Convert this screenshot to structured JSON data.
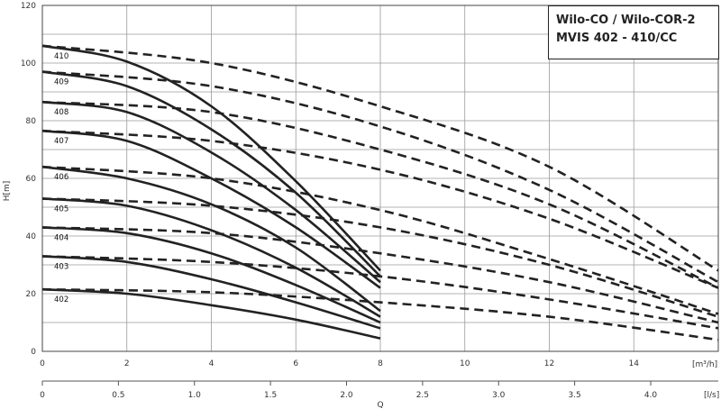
{
  "chart_data": {
    "type": "line",
    "title": [
      "Wilo-CO / Wilo-COR-2",
      "MVIS 402 - 410/CC"
    ],
    "ylabel": "H[m]",
    "xlabel": "Q",
    "x_unit_primary": "[m³/h]",
    "x_unit_secondary": "[l/s]",
    "xlim": [
      0,
      16
    ],
    "ylim": [
      0,
      120
    ],
    "x_ticks": [
      "0",
      "2",
      "4",
      "6",
      "8",
      "10",
      "12",
      "14"
    ],
    "y_ticks": [
      "0",
      "20",
      "40",
      "60",
      "80",
      "100",
      "120"
    ],
    "x_secondary_ticks": [
      "0",
      "0.5",
      "1.0",
      "1.5",
      "2.0",
      "2.5",
      "3.0",
      "3.5",
      "4.0"
    ],
    "grid": true,
    "series": [
      {
        "name": "402",
        "single": {
          "x": [
            0,
            2,
            4,
            6,
            8
          ],
          "y": [
            21.5,
            20,
            16,
            11,
            4.5
          ]
        },
        "parallel": {
          "x": [
            0,
            4,
            8,
            12,
            16
          ],
          "y": [
            21.5,
            20.5,
            17,
            12,
            4
          ]
        }
      },
      {
        "name": "403",
        "single": {
          "x": [
            0,
            2,
            4,
            6,
            8
          ],
          "y": [
            33,
            31,
            25,
            17,
            8
          ]
        },
        "parallel": {
          "x": [
            0,
            4,
            8,
            12,
            16
          ],
          "y": [
            33,
            31,
            26,
            18,
            8
          ]
        }
      },
      {
        "name": "404",
        "single": {
          "x": [
            0,
            2,
            4,
            6,
            8
          ],
          "y": [
            43,
            41,
            34,
            23,
            10
          ]
        },
        "parallel": {
          "x": [
            0,
            4,
            8,
            12,
            16
          ],
          "y": [
            43,
            41,
            34,
            24,
            10
          ]
        }
      },
      {
        "name": "405",
        "single": {
          "x": [
            0,
            2,
            4,
            6,
            8
          ],
          "y": [
            53,
            50.5,
            42,
            29,
            12
          ]
        },
        "parallel": {
          "x": [
            0,
            4,
            8,
            12,
            16
          ],
          "y": [
            53,
            50.5,
            43,
            30,
            12
          ]
        }
      },
      {
        "name": "406",
        "single": {
          "x": [
            0,
            2,
            4,
            6,
            8
          ],
          "y": [
            64,
            60,
            51,
            36,
            14
          ]
        },
        "parallel": {
          "x": [
            0,
            4,
            8,
            12,
            16
          ],
          "y": [
            64,
            60,
            49,
            32,
            13
          ]
        }
      },
      {
        "name": "407",
        "single": {
          "x": [
            0,
            2,
            4,
            6,
            8
          ],
          "y": [
            76.5,
            73,
            60,
            43,
            22
          ]
        },
        "parallel": {
          "x": [
            0,
            4,
            8,
            12,
            16
          ],
          "y": [
            76.5,
            73,
            63,
            46,
            22
          ]
        }
      },
      {
        "name": "408",
        "single": {
          "x": [
            0,
            2,
            4,
            6,
            8
          ],
          "y": [
            86.5,
            83,
            69,
            49,
            24
          ]
        },
        "parallel": {
          "x": [
            0,
            4,
            8,
            12,
            16
          ],
          "y": [
            86.5,
            83,
            70,
            51,
            22
          ]
        }
      },
      {
        "name": "409",
        "single": {
          "x": [
            0,
            2,
            4,
            6,
            8
          ],
          "y": [
            97,
            92,
            77,
            55,
            26
          ]
        },
        "parallel": {
          "x": [
            0,
            4,
            8,
            12,
            16
          ],
          "y": [
            97,
            92,
            78,
            56,
            24
          ]
        }
      },
      {
        "name": "410",
        "single": {
          "x": [
            0,
            2,
            4,
            6,
            8
          ],
          "y": [
            106,
            100.5,
            85,
            59,
            28
          ]
        },
        "parallel": {
          "x": [
            0,
            4,
            8,
            12,
            16
          ],
          "y": [
            106,
            100,
            85,
            64,
            28
          ]
        }
      }
    ]
  }
}
